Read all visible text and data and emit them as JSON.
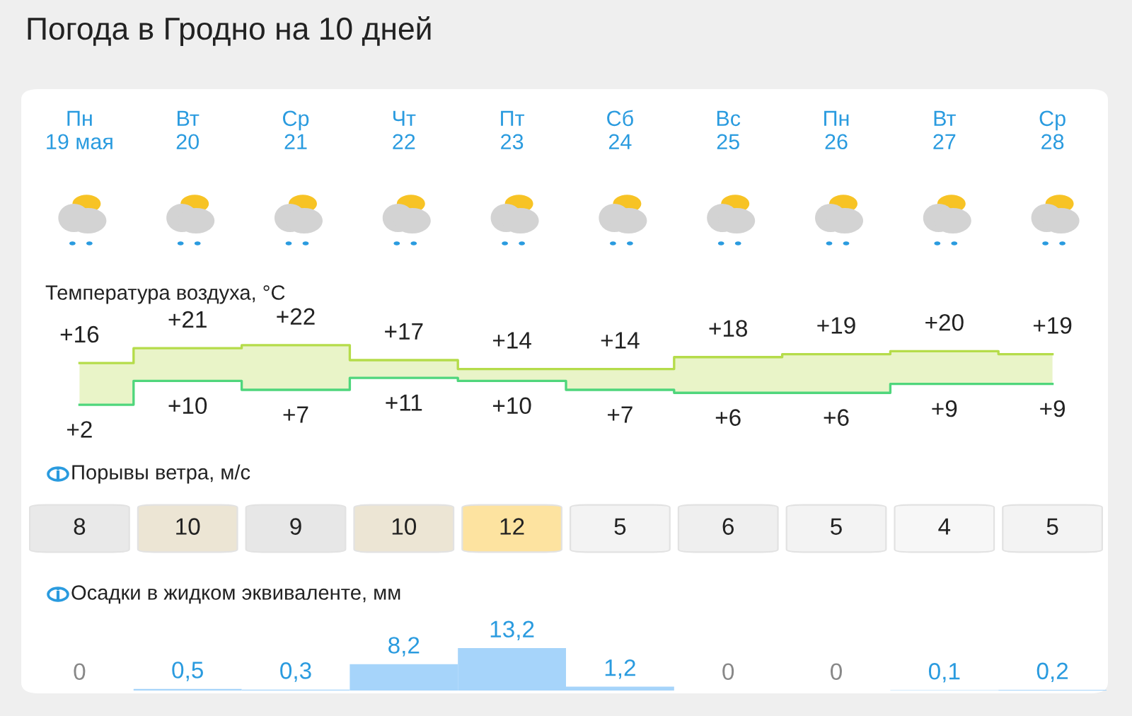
{
  "chart_data": [
    {
      "type": "step",
      "title": "Погода в Гродно на 10 дней",
      "subtitle": "Температура воздуха, °C",
      "categories": [
        "Пн\n19 мая",
        "Вт\n20",
        "Ср\n21",
        "Чт\n22",
        "Пт\n23",
        "Сб\n24",
        "Вс\n25",
        "Пн\n26",
        "Вт\n27",
        "Ср\n28"
      ],
      "tick_labels": "x",
      "series": [
        {
          "color": "#b5dc4a",
          "values": [
            16,
            21,
            22,
            17,
            14,
            14,
            18,
            19,
            20,
            19
          ],
          "upper": [
            16,
            21,
            22,
            17,
            14,
            14,
            18,
            19,
            20,
            19
          ],
          "lower": [
            2,
            10,
            7,
            11,
            10,
            7,
            6,
            6,
            9,
            9
          ],
          "value_labels": [
            "+16",
            "+21",
            "+22",
            "+17",
            "+14",
            "+14",
            "+18",
            "+19",
            "+20",
            "+19"
          ]
        },
        {
          "color": "#4fd67c",
          "values": [
            2,
            10,
            7,
            11,
            10,
            7,
            6,
            6,
            9,
            9
          ],
          "value_labels": [
            "+2",
            "+10",
            "+7",
            "+11",
            "+10",
            "+7",
            "+6",
            "+6",
            "+9",
            "+9"
          ]
        }
      ]
    },
    {
      "type": "other",
      "title": "Порывы ветра, м/с",
      "categories": [
        null,
        null,
        null,
        null,
        null,
        null,
        null,
        null,
        null,
        null
      ],
      "values": [
        8,
        10,
        9,
        10,
        12,
        5,
        6,
        5,
        4,
        5
      ],
      "data_labels": true
    },
    {
      "type": "bar",
      "title": "Осадки в жидком эквиваленте, мм",
      "categories": [
        null,
        null,
        null,
        null,
        null,
        null,
        null,
        null,
        null,
        null
      ],
      "values": [
        0,
        0.5,
        0.3,
        8.2,
        13.2,
        1.2,
        0,
        0,
        0.1,
        0.2
      ],
      "color": "#a6d4fa",
      "value_labels": [
        "0",
        "0,5",
        "0,3",
        "8,2",
        "13,2",
        "1,2",
        "0",
        "0",
        "0,1",
        "0,2"
      ],
      "tick_labels": false
    }
  ]
}
